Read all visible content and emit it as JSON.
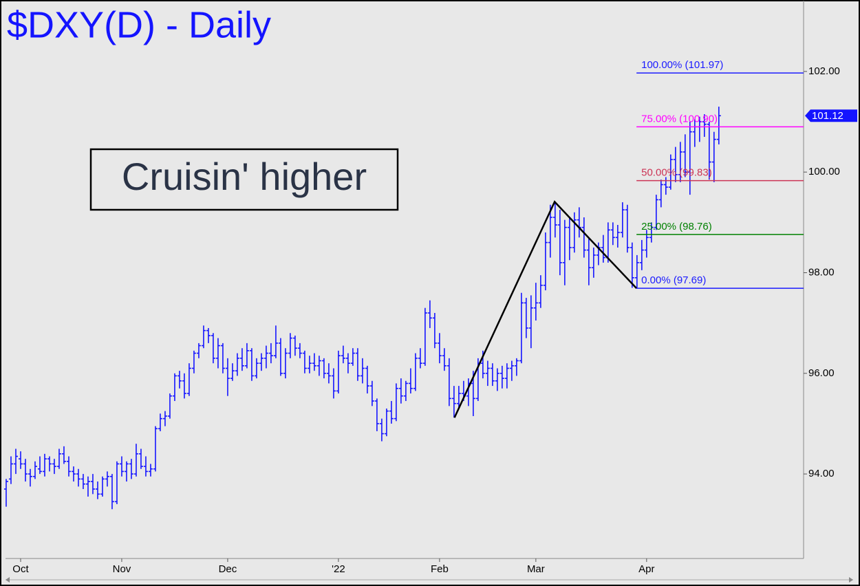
{
  "chart_data": {
    "type": "ohlc",
    "title": "$DXY(D) - Daily",
    "annotation": "Cruisin' higher",
    "xlim": [
      -0.14,
      165.6
    ],
    "xticks": [
      {
        "value": 3,
        "label": "Oct"
      },
      {
        "value": 24,
        "label": "Nov"
      },
      {
        "value": 46,
        "label": "Dec"
      },
      {
        "value": 69,
        "label": "'22"
      },
      {
        "value": 90,
        "label": "Feb"
      },
      {
        "value": 110,
        "label": "Mar"
      },
      {
        "value": 133,
        "label": "Apr"
      }
    ],
    "ylim": [
      92.32,
      103.42
    ],
    "yticks": [
      {
        "value": 94,
        "label": "94.00"
      },
      {
        "value": 96,
        "label": "96.00"
      },
      {
        "value": 98,
        "label": "98.00"
      },
      {
        "value": 100,
        "label": "100.00"
      },
      {
        "value": 102,
        "label": "102.00"
      }
    ],
    "last_price": 101.12,
    "series": [
      {
        "color": "#1414ff",
        "values": [
          [
            93.7,
            93.9,
            93.35,
            93.85
          ],
          [
            93.9,
            94.35,
            93.8,
            94.2
          ],
          [
            94.2,
            94.5,
            94.0,
            94.35
          ],
          [
            94.3,
            94.45,
            94.1,
            94.2
          ],
          [
            94.2,
            94.3,
            93.85,
            94.0
          ],
          [
            94.0,
            94.1,
            93.75,
            93.95
          ],
          [
            93.95,
            94.25,
            93.9,
            94.15
          ],
          [
            94.1,
            94.35,
            94.0,
            94.05
          ],
          [
            94.05,
            94.4,
            93.95,
            94.3
          ],
          [
            94.3,
            94.35,
            94.05,
            94.2
          ],
          [
            94.2,
            94.3,
            94.0,
            94.15
          ],
          [
            94.15,
            94.5,
            94.1,
            94.4
          ],
          [
            94.4,
            94.55,
            94.2,
            94.25
          ],
          [
            94.25,
            94.35,
            93.95,
            94.05
          ],
          [
            94.05,
            94.15,
            93.85,
            94.0
          ],
          [
            94.0,
            94.1,
            93.75,
            93.9
          ],
          [
            93.9,
            94.0,
            93.7,
            93.8
          ],
          [
            93.8,
            93.95,
            93.55,
            93.85
          ],
          [
            93.85,
            94.0,
            93.6,
            93.7
          ],
          [
            93.7,
            93.85,
            93.5,
            93.6
          ],
          [
            93.6,
            93.95,
            93.55,
            93.9
          ],
          [
            93.9,
            94.05,
            93.75,
            93.95
          ],
          [
            93.95,
            94.0,
            93.3,
            93.45
          ],
          [
            93.45,
            94.25,
            93.4,
            94.2
          ],
          [
            94.2,
            94.35,
            93.95,
            94.05
          ],
          [
            94.05,
            94.25,
            93.85,
            94.2
          ],
          [
            94.2,
            94.3,
            93.9,
            94.0
          ],
          [
            94.0,
            94.6,
            93.95,
            94.4
          ],
          [
            94.4,
            94.5,
            94.1,
            94.15
          ],
          [
            94.15,
            94.35,
            93.95,
            94.05
          ],
          [
            94.05,
            94.2,
            93.95,
            94.1
          ],
          [
            94.1,
            94.95,
            94.05,
            94.9
          ],
          [
            94.9,
            95.2,
            94.85,
            95.1
          ],
          [
            95.1,
            95.25,
            94.95,
            95.15
          ],
          [
            95.15,
            95.6,
            95.1,
            95.55
          ],
          [
            95.55,
            96.0,
            95.45,
            95.95
          ],
          [
            95.95,
            96.05,
            95.7,
            95.85
          ],
          [
            95.85,
            96.0,
            95.5,
            95.6
          ],
          [
            95.6,
            96.2,
            95.55,
            96.1
          ],
          [
            96.1,
            96.45,
            96.0,
            96.4
          ],
          [
            96.4,
            96.6,
            96.3,
            96.55
          ],
          [
            96.55,
            96.95,
            96.5,
            96.85
          ],
          [
            96.85,
            96.9,
            96.6,
            96.75
          ],
          [
            96.75,
            96.8,
            96.2,
            96.3
          ],
          [
            96.3,
            96.7,
            96.1,
            96.55
          ],
          [
            96.55,
            96.6,
            96.0,
            96.1
          ],
          [
            96.1,
            96.3,
            95.55,
            95.9
          ],
          [
            95.9,
            96.2,
            95.85,
            96.05
          ],
          [
            96.05,
            96.4,
            95.95,
            96.3
          ],
          [
            96.3,
            96.5,
            96.05,
            96.15
          ],
          [
            96.15,
            96.6,
            96.1,
            96.45
          ],
          [
            96.45,
            96.5,
            95.85,
            95.95
          ],
          [
            95.95,
            96.3,
            95.9,
            96.2
          ],
          [
            96.2,
            96.4,
            96.05,
            96.3
          ],
          [
            96.3,
            96.55,
            96.1,
            96.4
          ],
          [
            96.4,
            96.6,
            96.2,
            96.35
          ],
          [
            96.35,
            96.95,
            96.3,
            96.6
          ],
          [
            96.6,
            96.7,
            95.95,
            96.0
          ],
          [
            96.0,
            96.5,
            95.9,
            96.4
          ],
          [
            96.4,
            96.8,
            96.3,
            96.7
          ],
          [
            96.7,
            96.75,
            96.35,
            96.5
          ],
          [
            96.5,
            96.6,
            96.3,
            96.4
          ],
          [
            96.4,
            96.45,
            96.0,
            96.1
          ],
          [
            96.1,
            96.35,
            96.0,
            96.2
          ],
          [
            96.2,
            96.4,
            96.05,
            96.15
          ],
          [
            96.15,
            96.35,
            95.95,
            96.25
          ],
          [
            96.25,
            96.3,
            95.9,
            96.0
          ],
          [
            96.0,
            96.2,
            95.8,
            95.95
          ],
          [
            95.95,
            96.1,
            95.5,
            95.65
          ],
          [
            95.65,
            96.45,
            95.6,
            96.35
          ],
          [
            96.35,
            96.55,
            96.2,
            96.3
          ],
          [
            96.3,
            96.4,
            96.0,
            96.2
          ],
          [
            96.2,
            96.5,
            96.15,
            96.4
          ],
          [
            96.4,
            96.5,
            95.85,
            95.95
          ],
          [
            95.95,
            96.3,
            95.8,
            96.1
          ],
          [
            96.1,
            96.15,
            95.6,
            95.75
          ],
          [
            95.75,
            95.85,
            95.35,
            95.45
          ],
          [
            95.45,
            95.5,
            94.85,
            95.0
          ],
          [
            95.0,
            95.1,
            94.65,
            94.8
          ],
          [
            94.8,
            95.3,
            94.75,
            95.25
          ],
          [
            95.25,
            95.45,
            95.0,
            95.1
          ],
          [
            95.1,
            95.8,
            95.05,
            95.7
          ],
          [
            95.7,
            95.9,
            95.4,
            95.55
          ],
          [
            95.55,
            95.85,
            95.45,
            95.8
          ],
          [
            95.8,
            96.1,
            95.6,
            95.7
          ],
          [
            95.7,
            96.4,
            95.65,
            96.3
          ],
          [
            96.3,
            96.5,
            96.1,
            96.2
          ],
          [
            96.2,
            97.3,
            96.15,
            97.2
          ],
          [
            97.2,
            97.45,
            96.9,
            97.1
          ],
          [
            97.1,
            97.2,
            96.5,
            96.6
          ],
          [
            96.6,
            96.8,
            96.2,
            96.35
          ],
          [
            96.35,
            96.5,
            96.05,
            96.15
          ],
          [
            96.15,
            96.3,
            95.35,
            95.5
          ],
          [
            95.5,
            95.75,
            95.12,
            95.4
          ],
          [
            95.4,
            95.75,
            95.3,
            95.6
          ],
          [
            95.6,
            95.85,
            95.45,
            95.55
          ],
          [
            95.55,
            95.9,
            95.35,
            95.8
          ],
          [
            95.8,
            96.05,
            95.15,
            95.5
          ],
          [
            95.5,
            96.3,
            95.45,
            96.2
          ],
          [
            96.2,
            96.45,
            95.9,
            96.0
          ],
          [
            96.0,
            96.25,
            95.75,
            96.1
          ],
          [
            96.1,
            96.2,
            95.75,
            95.85
          ],
          [
            95.85,
            96.1,
            95.65,
            96.0
          ],
          [
            96.0,
            96.15,
            95.7,
            95.9
          ],
          [
            95.9,
            96.2,
            95.7,
            96.1
          ],
          [
            96.1,
            96.25,
            95.85,
            96.15
          ],
          [
            96.15,
            96.3,
            95.95,
            96.25
          ],
          [
            96.25,
            97.6,
            96.2,
            97.4
          ],
          [
            97.4,
            97.5,
            96.7,
            96.9
          ],
          [
            96.9,
            97.55,
            96.5,
            97.3
          ],
          [
            97.3,
            97.8,
            97.05,
            97.4
          ],
          [
            97.4,
            97.95,
            97.3,
            97.75
          ],
          [
            97.75,
            98.8,
            97.65,
            98.6
          ],
          [
            98.6,
            99.35,
            98.3,
            99.1
          ],
          [
            99.1,
            99.41,
            98.7,
            98.95
          ],
          [
            98.95,
            99.25,
            97.95,
            98.2
          ],
          [
            98.2,
            99.05,
            97.75,
            98.9
          ],
          [
            98.9,
            99.1,
            98.25,
            98.5
          ],
          [
            98.5,
            99.2,
            98.4,
            99.05
          ],
          [
            99.05,
            99.3,
            98.7,
            98.9
          ],
          [
            98.9,
            99.1,
            98.3,
            98.45
          ],
          [
            98.45,
            98.7,
            97.75,
            98.1
          ],
          [
            98.1,
            98.5,
            97.9,
            98.35
          ],
          [
            98.35,
            98.6,
            98.15,
            98.5
          ],
          [
            98.5,
            98.75,
            98.2,
            98.3
          ],
          [
            98.3,
            99.0,
            98.2,
            98.85
          ],
          [
            98.85,
            99.0,
            98.55,
            98.7
          ],
          [
            98.7,
            98.95,
            98.5,
            98.8
          ],
          [
            98.8,
            99.4,
            98.7,
            99.25
          ],
          [
            99.25,
            99.35,
            98.4,
            98.5
          ],
          [
            98.5,
            98.6,
            97.7,
            97.9
          ],
          [
            97.9,
            98.35,
            97.69,
            98.2
          ],
          [
            98.2,
            98.65,
            98.05,
            98.45
          ],
          [
            98.45,
            98.85,
            98.3,
            98.7
          ],
          [
            98.7,
            99.0,
            98.6,
            98.9
          ],
          [
            98.9,
            99.55,
            98.85,
            99.45
          ],
          [
            99.45,
            99.85,
            99.3,
            99.75
          ],
          [
            99.75,
            99.9,
            99.55,
            99.7
          ],
          [
            99.7,
            100.35,
            99.65,
            100.25
          ],
          [
            100.25,
            100.5,
            99.8,
            99.95
          ],
          [
            99.95,
            100.6,
            99.8,
            100.4
          ],
          [
            100.4,
            100.75,
            99.9,
            100.0
          ],
          [
            100.0,
            101.0,
            99.55,
            100.8
          ],
          [
            100.8,
            101.05,
            100.5,
            100.9
          ],
          [
            100.9,
            101.1,
            100.6,
            101.0
          ],
          [
            101.0,
            101.15,
            100.7,
            100.95
          ],
          [
            100.95,
            101.0,
            99.85,
            100.2
          ],
          [
            100.2,
            100.8,
            99.8,
            100.65
          ],
          [
            100.65,
            101.3,
            100.55,
            101.12
          ]
        ]
      }
    ],
    "trendline": {
      "color": "#000000",
      "x": [
        93.1,
        113.9,
        130.9
      ],
      "y": [
        95.12,
        99.41,
        97.69
      ]
    },
    "fib_levels": [
      {
        "value": 101.97,
        "label": "100.00% (101.97)",
        "color": "#1a1aff"
      },
      {
        "value": 100.9,
        "label": "75.00% (100.90)",
        "color": "#ff00ff"
      },
      {
        "value": 99.83,
        "label": "50.00% (99.83)",
        "color": "#cc3355"
      },
      {
        "value": 98.76,
        "label": "25.00% (98.76)",
        "color": "#008000"
      },
      {
        "value": 97.69,
        "label": "0.00% (97.69)",
        "color": "#1a1aff"
      }
    ]
  }
}
